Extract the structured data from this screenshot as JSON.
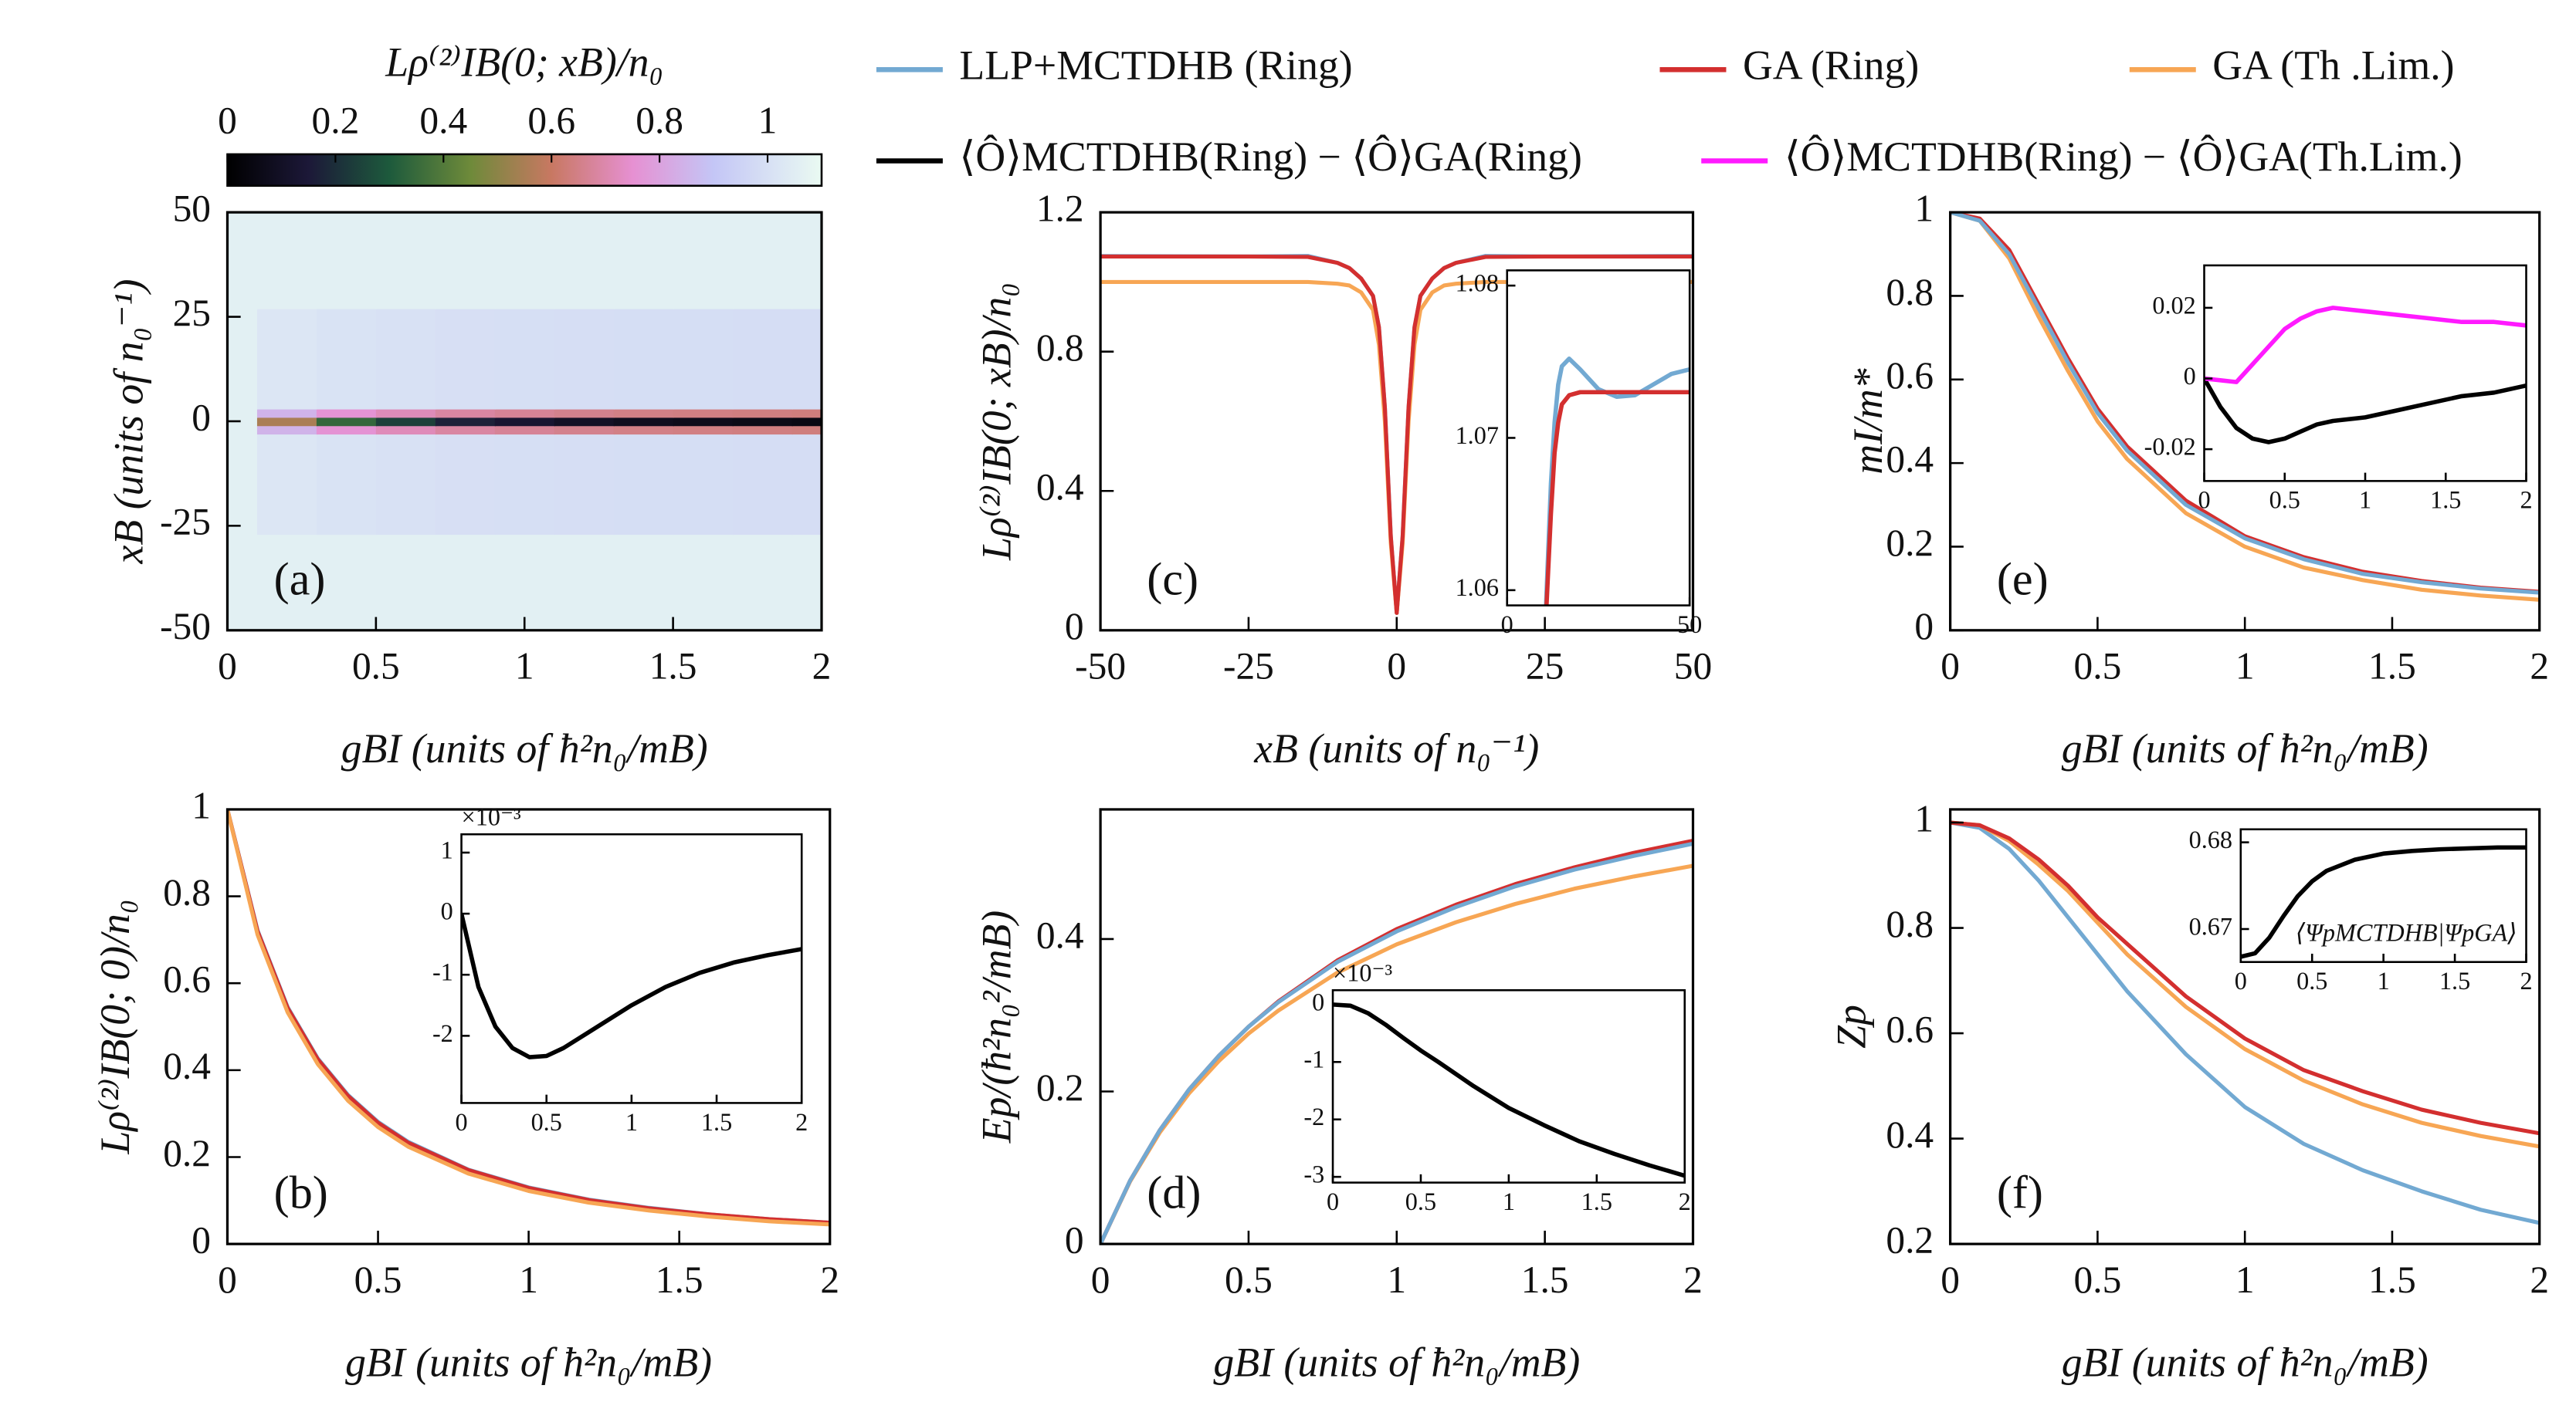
{
  "chart_data": [
    {
      "type": "heatmap",
      "colorbar_label": "Lρ⁽²⁾IB(0; xB)/n₀",
      "xlabel": "gBI (units of ħ²n₀/mB)",
      "ylabel": "xB (units of n₀⁻¹)",
      "panel_label": "(a)",
      "x": [
        0,
        0.2,
        0.4,
        0.6,
        0.8,
        1,
        1.2,
        1.4,
        1.6,
        1.8,
        2
      ],
      "y": [
        -50,
        -4,
        -2,
        0,
        2,
        4,
        50
      ],
      "z": [
        [
          1.06,
          1.06,
          1.06,
          1.06,
          1.06,
          1.06,
          1.06,
          1.06,
          1.06,
          1.06,
          1.06
        ],
        [
          1.06,
          1.024,
          1.01,
          1.003,
          0.998,
          0.995,
          0.993,
          0.991,
          0.991,
          0.99,
          0.989
        ],
        [
          1.06,
          0.846,
          0.758,
          0.716,
          0.686,
          0.669,
          0.657,
          0.648,
          0.644,
          0.64,
          0.636
        ],
        [
          1.06,
          0.55,
          0.34,
          0.24,
          0.17,
          0.13,
          0.1,
          0.08,
          0.07,
          0.06,
          0.05
        ],
        [
          1.06,
          0.846,
          0.758,
          0.716,
          0.686,
          0.669,
          0.657,
          0.648,
          0.644,
          0.64,
          0.636
        ],
        [
          1.06,
          1.024,
          1.01,
          1.003,
          0.998,
          0.995,
          0.993,
          0.991,
          0.991,
          0.99,
          0.989
        ],
        [
          1.06,
          1.06,
          1.06,
          1.06,
          1.06,
          1.06,
          1.06,
          1.06,
          1.06,
          1.06,
          1.06
        ]
      ],
      "xlim": [
        0,
        2
      ],
      "xticks": [
        0,
        0.5,
        1,
        1.5,
        2
      ],
      "ylim": [
        -50,
        50
      ],
      "yticks": [
        -50,
        -25,
        0,
        25,
        50
      ],
      "zlim": [
        0,
        1.1
      ],
      "zticks": [
        0,
        0.2,
        0.4,
        0.6,
        0.8,
        1
      ],
      "colormap": [
        {
          "value": 0,
          "color": "#000000"
        },
        {
          "value": 0.15,
          "color": "#1c1838"
        },
        {
          "value": 0.3,
          "color": "#1d5a3c"
        },
        {
          "value": 0.45,
          "color": "#6e8a3a"
        },
        {
          "value": 0.6,
          "color": "#c87862"
        },
        {
          "value": 0.75,
          "color": "#e690d2"
        },
        {
          "value": 0.9,
          "color": "#c4c6f6"
        },
        {
          "value": 1.1,
          "color": "#eafaf2"
        }
      ]
    },
    {
      "type": "line",
      "xlabel": "gBI (units of ħ²n₀/mB)",
      "ylabel": "Lρ⁽²⁾IB(0; 0)/n₀",
      "panel_label": "(b)",
      "x": [
        0,
        0.1,
        0.2,
        0.3,
        0.4,
        0.5,
        0.6,
        0.8,
        1,
        1.2,
        1.4,
        1.6,
        1.8,
        2
      ],
      "xlim": [
        0,
        2
      ],
      "xticks": [
        0,
        0.5,
        1,
        1.5,
        2
      ],
      "ylim": [
        0,
        1
      ],
      "yticks": [
        0,
        0.2,
        0.4,
        0.6,
        0.8,
        1
      ],
      "series": [
        {
          "name": "LLP+MCTDHB (Ring)",
          "color": "#72a9d2",
          "values": [
            1,
            0.722,
            0.545,
            0.427,
            0.343,
            0.281,
            0.235,
            0.171,
            0.13,
            0.102,
            0.083,
            0.068,
            0.057,
            0.049
          ]
        },
        {
          "name": "GA (Ring)",
          "color": "#d32f2f",
          "values": [
            1,
            0.72,
            0.543,
            0.425,
            0.341,
            0.279,
            0.233,
            0.17,
            0.129,
            0.101,
            0.082,
            0.068,
            0.057,
            0.049
          ]
        },
        {
          "name": "GA (Th .Lim.)",
          "color": "#f7a654",
          "values": [
            1,
            0.712,
            0.533,
            0.414,
            0.33,
            0.269,
            0.224,
            0.162,
            0.122,
            0.095,
            0.077,
            0.063,
            0.052,
            0.045
          ]
        }
      ],
      "inset": {
        "y_multiplier": "×10⁻³",
        "x": [
          0,
          0.1,
          0.2,
          0.3,
          0.4,
          0.5,
          0.6,
          0.8,
          1,
          1.2,
          1.4,
          1.6,
          1.8,
          2
        ],
        "xlim": [
          0,
          2
        ],
        "xticks": [
          0,
          0.5,
          1,
          1.5,
          2
        ],
        "ylim": [
          -3.1,
          1.3
        ],
        "yticks": [
          -2,
          -1,
          0,
          1
        ],
        "series": [
          {
            "name": "⟨Ô⟩MCTDHB(Ring) − ⟨Ô⟩GA(Ring)",
            "color": "#000000",
            "values": [
              0,
              -1.2,
              -1.85,
              -2.2,
              -2.35,
              -2.33,
              -2.2,
              -1.85,
              -1.5,
              -1.2,
              -0.97,
              -0.8,
              -0.68,
              -0.58
            ]
          }
        ]
      }
    },
    {
      "type": "line",
      "xlabel": "xB (units of n₀⁻¹)",
      "ylabel": "Lρ⁽²⁾IB(0; xB)/n₀",
      "panel_label": "(c)",
      "x": [
        -50,
        -25,
        -15,
        -10,
        -8,
        -6,
        -4,
        -3,
        -2,
        -1,
        0,
        1,
        2,
        3,
        4,
        6,
        8,
        10,
        15,
        25,
        50
      ],
      "xlim": [
        -50,
        50
      ],
      "xticks": [
        -50,
        -25,
        0,
        25,
        50
      ],
      "ylim": [
        0,
        1.2
      ],
      "yticks": [
        0,
        0.4,
        0.8,
        1.2
      ],
      "series": [
        {
          "name": "LLP+MCTDHB (Ring)",
          "color": "#72a9d2",
          "values": [
            1.0745,
            1.0732,
            1.0747,
            1.055,
            1.04,
            1.01,
            0.96,
            0.87,
            0.64,
            0.27,
            0.05,
            0.27,
            0.64,
            0.87,
            0.96,
            1.01,
            1.04,
            1.055,
            1.0747,
            1.0732,
            1.0745
          ]
        },
        {
          "name": "GA (Th .Lim.)",
          "color": "#f7a654",
          "values": [
            1,
            1,
            1,
            0.995,
            0.99,
            0.97,
            0.92,
            0.82,
            0.6,
            0.25,
            0.05,
            0.25,
            0.6,
            0.82,
            0.92,
            0.97,
            0.99,
            0.995,
            1,
            1,
            1
          ]
        },
        {
          "name": "GA (Ring)",
          "color": "#d32f2f",
          "values": [
            1.073,
            1.073,
            1.072,
            1.055,
            1.04,
            1.01,
            0.96,
            0.87,
            0.64,
            0.27,
            0.05,
            0.27,
            0.64,
            0.87,
            0.96,
            1.01,
            1.04,
            1.055,
            1.072,
            1.073,
            1.073
          ]
        }
      ],
      "inset": {
        "x": [
          10,
          11,
          12,
          13,
          14,
          15,
          17,
          20,
          25,
          30,
          35,
          40,
          45,
          50
        ],
        "xlim": [
          0,
          50
        ],
        "xticks": [
          0,
          50
        ],
        "ylim": [
          1.059,
          1.081
        ],
        "yticks": [
          1.06,
          1.07,
          1.08
        ],
        "series": [
          {
            "name": "LLP+MCTDHB (Ring)",
            "color": "#72a9d2",
            "values": [
              1.055,
              1.061,
              1.067,
              1.071,
              1.0735,
              1.0747,
              1.0752,
              1.0745,
              1.0732,
              1.0727,
              1.0728,
              1.0735,
              1.0742,
              1.0745
            ]
          },
          {
            "name": "GA (Ring)",
            "color": "#d32f2f",
            "values": [
              1.055,
              1.06,
              1.065,
              1.069,
              1.071,
              1.0722,
              1.0728,
              1.073,
              1.073,
              1.073,
              1.073,
              1.073,
              1.073,
              1.073
            ]
          }
        ]
      }
    },
    {
      "type": "line",
      "xlabel": "gBI (units of ħ²n₀/mB)",
      "ylabel": "Ep/(ħ²n₀²/mB)",
      "panel_label": "(d)",
      "x": [
        0,
        0.1,
        0.2,
        0.3,
        0.4,
        0.5,
        0.6,
        0.8,
        1,
        1.2,
        1.4,
        1.6,
        1.8,
        2
      ],
      "xlim": [
        0,
        2
      ],
      "xticks": [
        0,
        0.5,
        1,
        1.5,
        2
      ],
      "ylim": [
        0,
        0.57
      ],
      "yticks": [
        0,
        0.2,
        0.4
      ],
      "series": [
        {
          "name": "GA (Th .Lim.)",
          "color": "#f7a654",
          "values": [
            0,
            0.082,
            0.146,
            0.198,
            0.24,
            0.276,
            0.306,
            0.356,
            0.393,
            0.422,
            0.446,
            0.466,
            0.482,
            0.496
          ]
        },
        {
          "name": "GA (Ring)",
          "color": "#d32f2f",
          "values": [
            0,
            0.083,
            0.149,
            0.203,
            0.247,
            0.285,
            0.318,
            0.372,
            0.413,
            0.445,
            0.472,
            0.494,
            0.513,
            0.529
          ]
        },
        {
          "name": "LLP+MCTDHB (Ring)",
          "color": "#72a9d2",
          "values": [
            0,
            0.083,
            0.149,
            0.203,
            0.247,
            0.285,
            0.317,
            0.37,
            0.41,
            0.442,
            0.469,
            0.491,
            0.509,
            0.525
          ]
        }
      ],
      "inset": {
        "y_multiplier": "×10⁻³",
        "x": [
          0,
          0.1,
          0.2,
          0.3,
          0.4,
          0.5,
          0.6,
          0.8,
          1,
          1.2,
          1.4,
          1.6,
          1.8,
          2
        ],
        "xlim": [
          0,
          2
        ],
        "xticks": [
          0,
          0.5,
          1,
          1.5,
          2
        ],
        "ylim": [
          -3.1,
          0.25
        ],
        "yticks": [
          -3,
          -2,
          -1,
          0
        ],
        "series": [
          {
            "name": "⟨Ô⟩MCTDHB(Ring) − ⟨Ô⟩GA(Ring)",
            "color": "#000000",
            "values": [
              0,
              -0.02,
              -0.15,
              -0.35,
              -0.58,
              -0.8,
              -1,
              -1.42,
              -1.8,
              -2.1,
              -2.38,
              -2.6,
              -2.8,
              -2.98
            ]
          }
        ]
      }
    },
    {
      "type": "line",
      "xlabel": "gBI (units of ħ²n₀/mB)",
      "ylabel": "mI/m*",
      "panel_label": "(e)",
      "x": [
        0,
        0.1,
        0.2,
        0.3,
        0.4,
        0.5,
        0.6,
        0.8,
        1,
        1.2,
        1.4,
        1.6,
        1.8,
        2
      ],
      "xlim": [
        0,
        2
      ],
      "xticks": [
        0,
        0.5,
        1,
        1.5,
        2
      ],
      "ylim": [
        0,
        1
      ],
      "yticks": [
        0,
        0.2,
        0.4,
        0.6,
        0.8,
        1
      ],
      "series": [
        {
          "name": "GA (Th .Lim.)",
          "color": "#f7a654",
          "values": [
            1,
            0.98,
            0.89,
            0.75,
            0.62,
            0.5,
            0.41,
            0.28,
            0.2,
            0.15,
            0.12,
            0.097,
            0.083,
            0.073
          ]
        },
        {
          "name": "GA (Ring)",
          "color": "#d32f2f",
          "values": [
            1,
            0.985,
            0.91,
            0.78,
            0.65,
            0.53,
            0.44,
            0.31,
            0.225,
            0.175,
            0.14,
            0.118,
            0.102,
            0.092
          ]
        },
        {
          "name": "LLP+MCTDHB (Ring)",
          "color": "#72a9d2",
          "values": [
            1,
            0.98,
            0.9,
            0.77,
            0.64,
            0.52,
            0.43,
            0.3,
            0.22,
            0.17,
            0.135,
            0.115,
            0.1,
            0.09
          ]
        }
      ],
      "inset": {
        "x": [
          0,
          0.1,
          0.2,
          0.3,
          0.4,
          0.5,
          0.6,
          0.7,
          0.8,
          1,
          1.2,
          1.4,
          1.6,
          1.8,
          2
        ],
        "xlim": [
          0,
          2
        ],
        "xticks": [
          0,
          0.5,
          1,
          1.5,
          2
        ],
        "ylim": [
          -0.029,
          0.032
        ],
        "yticks": [
          -0.02,
          0,
          0.02
        ],
        "series": [
          {
            "name": "⟨Ô⟩MCTDHB(Ring) − ⟨Ô⟩GA(Ring)",
            "color": "#000000",
            "values": [
              0,
              -0.008,
              -0.014,
              -0.017,
              -0.018,
              -0.017,
              -0.015,
              -0.013,
              -0.012,
              -0.011,
              -0.009,
              -0.007,
              -0.005,
              -0.004,
              -0.002
            ]
          },
          {
            "name": "⟨Ô⟩MCTDHB(Ring) − ⟨Ô⟩GA(Th.Lim.)",
            "color": "#ff1aff",
            "values": [
              0,
              -0.0005,
              -0.001,
              0.004,
              0.009,
              0.014,
              0.017,
              0.019,
              0.02,
              0.019,
              0.018,
              0.017,
              0.016,
              0.016,
              0.015
            ]
          }
        ]
      }
    },
    {
      "type": "line",
      "xlabel": "gBI (units of ħ²n₀/mB)",
      "ylabel": "Zp",
      "panel_label": "(f)",
      "x": [
        0,
        0.1,
        0.2,
        0.3,
        0.4,
        0.5,
        0.6,
        0.8,
        1,
        1.2,
        1.4,
        1.6,
        1.8,
        2
      ],
      "xlim": [
        0,
        2
      ],
      "xticks": [
        0,
        0.5,
        1,
        1.5,
        2
      ],
      "ylim": [
        0.2,
        1.025
      ],
      "yticks": [
        0.2,
        0.4,
        0.6,
        0.8,
        1
      ],
      "series": [
        {
          "name": "LLP+MCTDHB (Ring)",
          "color": "#72a9d2",
          "values": [
            1,
            0.99,
            0.95,
            0.89,
            0.82,
            0.75,
            0.68,
            0.56,
            0.46,
            0.39,
            0.34,
            0.3,
            0.265,
            0.24
          ]
        },
        {
          "name": "GA (Th .Lim.)",
          "color": "#f7a654",
          "values": [
            1,
            0.995,
            0.965,
            0.92,
            0.87,
            0.81,
            0.75,
            0.65,
            0.57,
            0.51,
            0.465,
            0.43,
            0.405,
            0.385
          ]
        },
        {
          "name": "GA (Ring)",
          "color": "#d32f2f",
          "values": [
            1,
            0.995,
            0.97,
            0.93,
            0.88,
            0.82,
            0.77,
            0.67,
            0.59,
            0.53,
            0.49,
            0.455,
            0.43,
            0.41
          ]
        }
      ],
      "inset": {
        "annotation": "⟨ΨpMCTDHB|ΨpGA⟩",
        "x": [
          0,
          0.1,
          0.2,
          0.3,
          0.4,
          0.5,
          0.6,
          0.8,
          1,
          1.2,
          1.4,
          1.6,
          1.8,
          2
        ],
        "xlim": [
          0,
          2
        ],
        "xticks": [
          0,
          0.5,
          1,
          1.5,
          2
        ],
        "ylim": [
          0.6662,
          0.6815
        ],
        "yticks": [
          0.67,
          0.68
        ],
        "series": [
          {
            "color": "#000000",
            "values": [
              0.6668,
              0.6672,
              0.669,
              0.6715,
              0.6738,
              0.6755,
              0.6767,
              0.678,
              0.6787,
              0.679,
              0.6792,
              0.6793,
              0.6794,
              0.6794
            ]
          }
        ]
      }
    }
  ]
}
